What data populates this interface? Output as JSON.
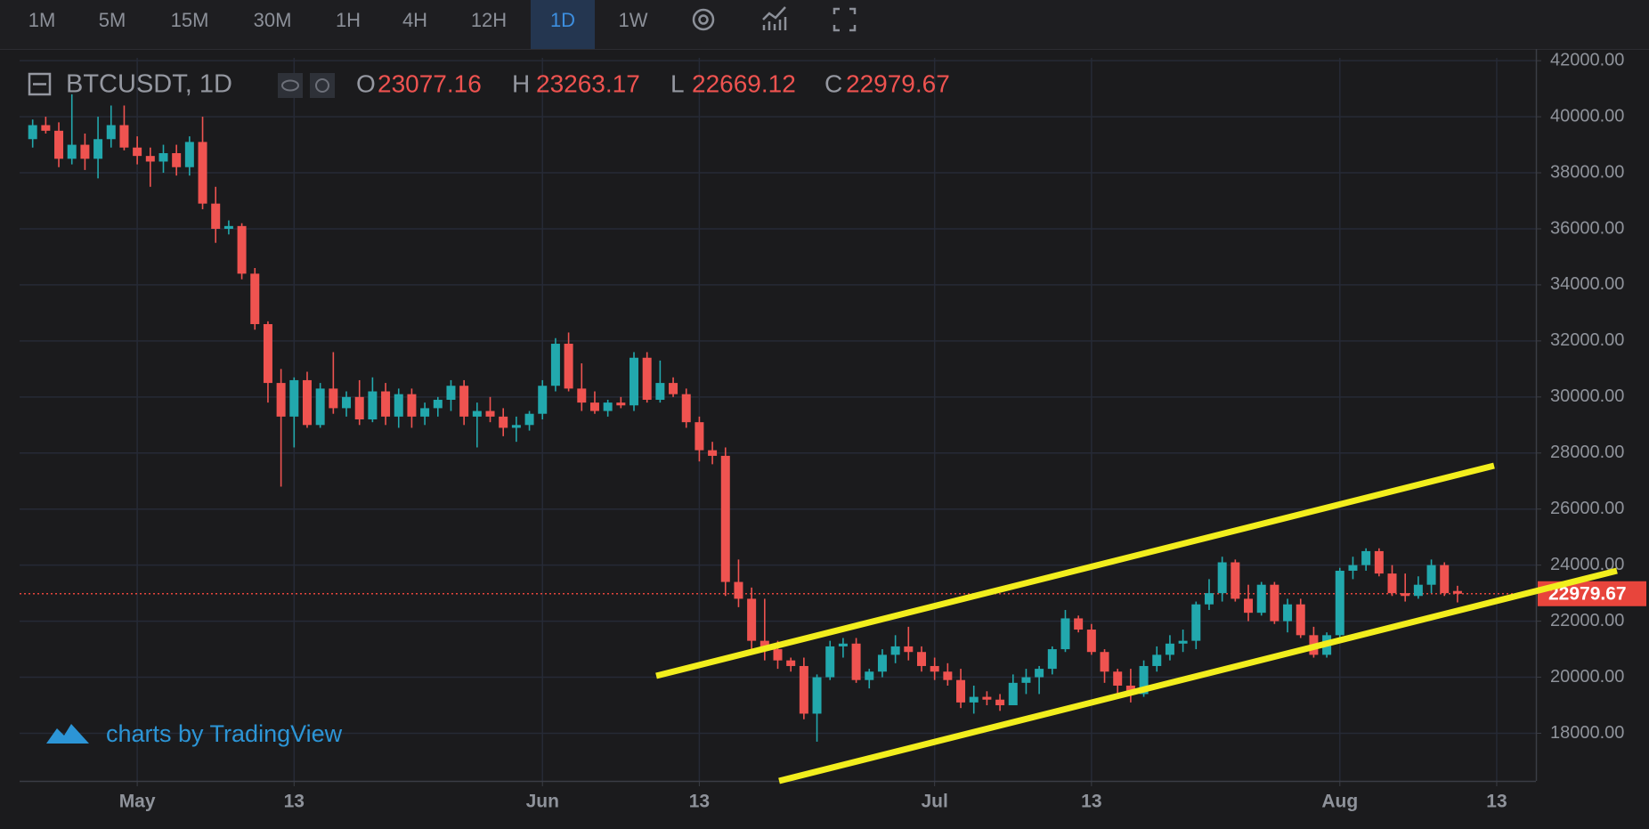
{
  "toolbar": {
    "intervals": [
      "1M",
      "5M",
      "15M",
      "30M",
      "1H",
      "4H",
      "12H",
      "1D",
      "1W"
    ],
    "selected": "1D"
  },
  "chart_data": {
    "type": "candlestick",
    "symbol": "BTCUSDT, 1D",
    "ohlc_labels": [
      "O",
      "H",
      "L",
      "C"
    ],
    "watermark": "charts by TradingView",
    "colors": {
      "up": "#22a8ad",
      "down": "#ef5350",
      "last_price": "#e8453c",
      "trendline": "#f2ee1d"
    },
    "x": [
      "04-23",
      "04-24",
      "04-25",
      "04-26",
      "04-27",
      "04-28",
      "04-29",
      "04-30",
      "05-01",
      "05-02",
      "05-03",
      "05-04",
      "05-05",
      "05-06",
      "05-07",
      "05-08",
      "05-09",
      "05-10",
      "05-11",
      "05-12",
      "05-13",
      "05-14",
      "05-15",
      "05-16",
      "05-17",
      "05-18",
      "05-19",
      "05-20",
      "05-21",
      "05-22",
      "05-23",
      "05-24",
      "05-25",
      "05-26",
      "05-27",
      "05-28",
      "05-29",
      "05-30",
      "05-31",
      "06-01",
      "06-02",
      "06-03",
      "06-04",
      "06-05",
      "06-06",
      "06-07",
      "06-08",
      "06-09",
      "06-10",
      "06-11",
      "06-12",
      "06-13",
      "06-14",
      "06-15",
      "06-16",
      "06-17",
      "06-18",
      "06-19",
      "06-20",
      "06-21",
      "06-22",
      "06-23",
      "06-24",
      "06-25",
      "06-26",
      "06-27",
      "06-28",
      "06-29",
      "06-30",
      "07-01",
      "07-02",
      "07-03",
      "07-04",
      "07-05",
      "07-06",
      "07-07",
      "07-08",
      "07-09",
      "07-10",
      "07-11",
      "07-12",
      "07-13",
      "07-14",
      "07-15",
      "07-16",
      "07-17",
      "07-18",
      "07-19",
      "07-20",
      "07-21",
      "07-22",
      "07-23",
      "07-24",
      "07-25",
      "07-26",
      "07-27",
      "07-28",
      "07-29",
      "07-30",
      "07-31",
      "08-01",
      "08-02",
      "08-03",
      "08-04",
      "08-05",
      "08-06",
      "08-07",
      "08-08",
      "08-09",
      "08-10"
    ],
    "candles": [
      [
        39200,
        39900,
        38900,
        39700
      ],
      [
        39700,
        40000,
        39400,
        39500
      ],
      [
        39500,
        39800,
        38200,
        38500
      ],
      [
        38500,
        40800,
        38300,
        39000
      ],
      [
        39000,
        39400,
        38100,
        38500
      ],
      [
        38500,
        40000,
        37800,
        39200
      ],
      [
        39200,
        40400,
        38900,
        39700
      ],
      [
        39700,
        40400,
        38800,
        38900
      ],
      [
        38900,
        39300,
        38300,
        38600
      ],
      [
        38600,
        38900,
        37500,
        38400
      ],
      [
        38400,
        39000,
        38000,
        38700
      ],
      [
        38700,
        39000,
        37900,
        38200
      ],
      [
        38200,
        39300,
        37900,
        39100
      ],
      [
        39100,
        40000,
        36700,
        36900
      ],
      [
        36900,
        37500,
        35500,
        36000
      ],
      [
        36000,
        36300,
        35800,
        36100
      ],
      [
        36100,
        36200,
        34200,
        34400
      ],
      [
        34400,
        34600,
        32400,
        32600
      ],
      [
        32600,
        32700,
        29800,
        30500
      ],
      [
        30500,
        31000,
        26800,
        29300
      ],
      [
        29300,
        30700,
        28200,
        30600
      ],
      [
        30600,
        30900,
        28900,
        29000
      ],
      [
        29000,
        30500,
        28900,
        30300
      ],
      [
        30300,
        31600,
        29400,
        29600
      ],
      [
        29600,
        30200,
        29300,
        30000
      ],
      [
        30000,
        30600,
        29000,
        29200
      ],
      [
        29200,
        30700,
        29100,
        30200
      ],
      [
        30200,
        30500,
        29000,
        29300
      ],
      [
        29300,
        30300,
        28900,
        30100
      ],
      [
        30100,
        30300,
        28900,
        29300
      ],
      [
        29300,
        29800,
        29000,
        29600
      ],
      [
        29600,
        30000,
        29300,
        29900
      ],
      [
        29900,
        30600,
        29500,
        30400
      ],
      [
        30400,
        30600,
        29000,
        29300
      ],
      [
        29300,
        29800,
        28200,
        29500
      ],
      [
        29500,
        30000,
        29100,
        29300
      ],
      [
        29300,
        29600,
        28600,
        28900
      ],
      [
        28900,
        29300,
        28400,
        29000
      ],
      [
        29000,
        29500,
        28800,
        29400
      ],
      [
        29400,
        30600,
        29200,
        30400
      ],
      [
        30400,
        32100,
        30200,
        31900
      ],
      [
        31900,
        32300,
        30200,
        30300
      ],
      [
        30300,
        31200,
        29500,
        29800
      ],
      [
        29800,
        30200,
        29400,
        29500
      ],
      [
        29500,
        29900,
        29300,
        29800
      ],
      [
        29800,
        30000,
        29600,
        29700
      ],
      [
        29700,
        31600,
        29500,
        31400
      ],
      [
        31400,
        31600,
        29800,
        29900
      ],
      [
        29900,
        31300,
        29800,
        30500
      ],
      [
        30500,
        30700,
        30000,
        30100
      ],
      [
        30100,
        30300,
        28900,
        29100
      ],
      [
        29100,
        29300,
        27700,
        28100
      ],
      [
        28100,
        28400,
        27600,
        27900
      ],
      [
        27900,
        28200,
        22900,
        23400
      ],
      [
        23400,
        24200,
        22500,
        22800
      ],
      [
        22800,
        23200,
        20800,
        21300
      ],
      [
        21300,
        22800,
        20600,
        21000
      ],
      [
        21000,
        21300,
        20300,
        20600
      ],
      [
        20600,
        20700,
        20200,
        20400
      ],
      [
        20400,
        20700,
        18500,
        18700
      ],
      [
        18700,
        20100,
        17700,
        20000
      ],
      [
        20000,
        21300,
        19900,
        21100
      ],
      [
        21100,
        21400,
        20700,
        21200
      ],
      [
        21200,
        21400,
        19800,
        19900
      ],
      [
        19900,
        20300,
        19600,
        20200
      ],
      [
        20200,
        21000,
        20000,
        20800
      ],
      [
        20800,
        21500,
        20500,
        21100
      ],
      [
        21100,
        21800,
        20600,
        20900
      ],
      [
        20900,
        21100,
        20200,
        20400
      ],
      [
        20400,
        20700,
        19900,
        20200
      ],
      [
        20200,
        20500,
        19700,
        19900
      ],
      [
        19900,
        20300,
        18900,
        19100
      ],
      [
        19100,
        19700,
        18700,
        19300
      ],
      [
        19300,
        19500,
        19000,
        19200
      ],
      [
        19200,
        19400,
        18800,
        19000
      ],
      [
        19000,
        20100,
        19000,
        19800
      ],
      [
        19800,
        20300,
        19400,
        20000
      ],
      [
        20000,
        20400,
        19400,
        20300
      ],
      [
        20300,
        21100,
        20100,
        21000
      ],
      [
        21000,
        22400,
        20900,
        22100
      ],
      [
        22100,
        22200,
        21600,
        21700
      ],
      [
        21700,
        21900,
        20800,
        20900
      ],
      [
        20900,
        21000,
        19800,
        20200
      ],
      [
        20200,
        20300,
        19300,
        19700
      ],
      [
        19700,
        20300,
        19100,
        19400
      ],
      [
        19400,
        20600,
        19300,
        20400
      ],
      [
        20400,
        21100,
        20200,
        20800
      ],
      [
        20800,
        21500,
        20600,
        21200
      ],
      [
        21200,
        21700,
        20900,
        21300
      ],
      [
        21300,
        22700,
        21000,
        22600
      ],
      [
        22600,
        23500,
        22400,
        23000
      ],
      [
        23000,
        24300,
        22700,
        24100
      ],
      [
        24100,
        24200,
        22700,
        22800
      ],
      [
        22800,
        23300,
        22000,
        22300
      ],
      [
        22300,
        23400,
        22200,
        23300
      ],
      [
        23300,
        23400,
        21900,
        22000
      ],
      [
        22000,
        22800,
        21600,
        22600
      ],
      [
        22600,
        22800,
        21400,
        21500
      ],
      [
        21500,
        21800,
        20700,
        20800
      ],
      [
        20800,
        21600,
        20700,
        21500
      ],
      [
        21500,
        23900,
        21400,
        23800
      ],
      [
        23800,
        24300,
        23500,
        24000
      ],
      [
        24000,
        24600,
        23800,
        24500
      ],
      [
        24500,
        24600,
        23600,
        23700
      ],
      [
        23700,
        24000,
        22900,
        23000
      ],
      [
        23000,
        23700,
        22700,
        22900
      ],
      [
        22900,
        23600,
        22800,
        23300
      ],
      [
        23300,
        24200,
        23000,
        24000
      ],
      [
        24000,
        24100,
        22900,
        23000
      ],
      [
        23077.16,
        23263.17,
        22669.12,
        22979.67
      ]
    ],
    "last_price": 22979.67,
    "ylim": [
      16300,
      42100
    ],
    "yticks": [
      {
        "value": 18000,
        "label": "18000.00"
      },
      {
        "value": 20000,
        "label": "20000.00"
      },
      {
        "value": 22000,
        "label": "22000.00"
      },
      {
        "value": 24000,
        "label": "24000.00"
      },
      {
        "value": 26000,
        "label": "26000.00"
      },
      {
        "value": 28000,
        "label": "28000.00"
      },
      {
        "value": 30000,
        "label": "30000.00"
      },
      {
        "value": 32000,
        "label": "32000.00"
      },
      {
        "value": 34000,
        "label": "34000.00"
      },
      {
        "value": 36000,
        "label": "36000.00"
      },
      {
        "value": 38000,
        "label": "38000.00"
      },
      {
        "value": 40000,
        "label": "40000.00"
      },
      {
        "value": 42000,
        "label": "42000.00"
      }
    ],
    "xlim": [
      "04-22",
      "08-16"
    ],
    "xticks": [
      {
        "value": "05-01",
        "label": "May"
      },
      {
        "value": "05-13",
        "label": "13"
      },
      {
        "value": "06-01",
        "label": "Jun"
      },
      {
        "value": "06-13",
        "label": "13"
      },
      {
        "value": "07-01",
        "label": "Jul"
      },
      {
        "value": "07-13",
        "label": "13"
      },
      {
        "value": "08-01",
        "label": "Aug"
      },
      {
        "value": "08-13",
        "label": "13"
      }
    ],
    "grid": true
  }
}
